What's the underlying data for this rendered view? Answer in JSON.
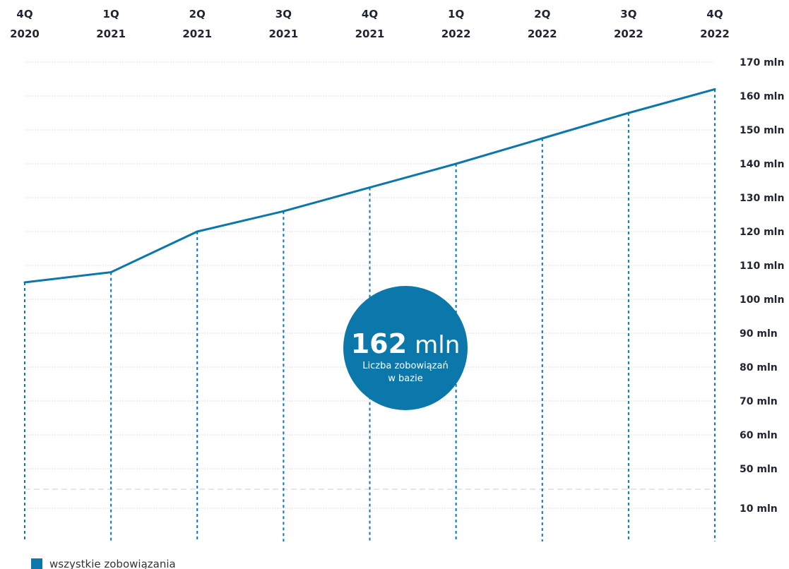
{
  "chart_data": {
    "type": "line",
    "categories": [
      [
        "4Q",
        "2020"
      ],
      [
        "1Q",
        "2021"
      ],
      [
        "2Q",
        "2021"
      ],
      [
        "3Q",
        "2021"
      ],
      [
        "4Q",
        "2021"
      ],
      [
        "1Q",
        "2022"
      ],
      [
        "2Q",
        "2022"
      ],
      [
        "3Q",
        "2022"
      ],
      [
        "4Q",
        "2022"
      ]
    ],
    "series": [
      {
        "name": "wszystkie zobowiązania",
        "color": "#0b77aa",
        "values": [
          105,
          108,
          120,
          126,
          133,
          140,
          147.5,
          155,
          162
        ]
      }
    ],
    "y_ticks": [
      {
        "value": 170,
        "label": "170 mln"
      },
      {
        "value": 160,
        "label": "160 mln"
      },
      {
        "value": 150,
        "label": "150 mln"
      },
      {
        "value": 140,
        "label": "140 mln"
      },
      {
        "value": 130,
        "label": "130 mln"
      },
      {
        "value": 120,
        "label": "120 mln"
      },
      {
        "value": 110,
        "label": "110 mln"
      },
      {
        "value": 100,
        "label": "100 mln"
      },
      {
        "value": 90,
        "label": "90 mln"
      },
      {
        "value": 80,
        "label": "80 mln"
      },
      {
        "value": 70,
        "label": "70 mln"
      },
      {
        "value": 60,
        "label": "60 mln"
      },
      {
        "value": 50,
        "label": "50 mln"
      },
      {
        "value": 10,
        "label": "10 mln"
      }
    ],
    "axis_break_between": [
      10,
      50
    ],
    "ylim": [
      0,
      175
    ],
    "grid": true,
    "legend_position": "bottom-left",
    "callout": {
      "number": "162",
      "unit": "mln",
      "caption_line1": "Liczba zobowiązań",
      "caption_line2": "w bazie",
      "color": "#0b77aa"
    }
  }
}
